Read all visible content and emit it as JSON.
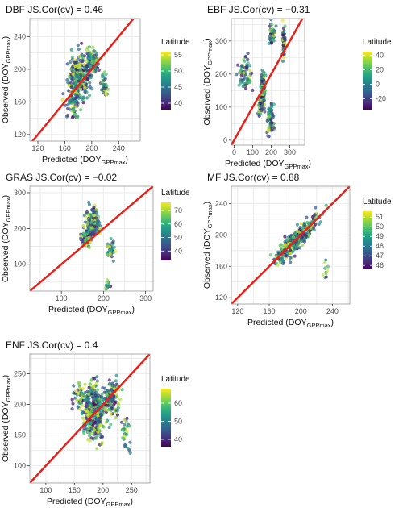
{
  "chart_data": [
    {
      "type": "scatter",
      "title": "DBF  JS.Cor(cv) = 0.46",
      "xlabel_main": "Predicted (DOY",
      "xlabel_sub": "GPPmax",
      "ylabel_main": "Observed (DOY",
      "ylabel_sub": "GPPmax",
      "xlim": [
        108,
        272
      ],
      "ylim": [
        112,
        262
      ],
      "xticks": [
        120,
        160,
        200,
        240
      ],
      "yticks": [
        120,
        160,
        200,
        240
      ],
      "legend_title": "Latitude",
      "legend_range": [
        38,
        56
      ],
      "legend_ticks": [
        40,
        45,
        50,
        55
      ],
      "identity_line": true,
      "grid": true,
      "clusters": [
        {
          "cx": 182,
          "cy": 190,
          "sx": 13,
          "sy": 24,
          "n": 260
        },
        {
          "cx": 200,
          "cy": 210,
          "sx": 8,
          "sy": 14,
          "n": 90
        },
        {
          "cx": 218,
          "cy": 182,
          "sx": 4,
          "sy": 12,
          "n": 35
        },
        {
          "cx": 172,
          "cy": 160,
          "sx": 9,
          "sy": 18,
          "n": 70
        }
      ]
    },
    {
      "type": "scatter",
      "title": "EBF  JS.Cor(cv) = −0.31",
      "xlabel_main": "Predicted (DOY",
      "xlabel_sub": "GPPmax",
      "ylabel_main": "Observed (DOY",
      "ylabel_sub": "GPPmax",
      "xlim": [
        -15,
        380
      ],
      "ylim": [
        -15,
        368
      ],
      "xticks": [
        0,
        100,
        200,
        300
      ],
      "yticks": [
        0,
        100,
        200,
        300
      ],
      "legend_title": "Latitude",
      "legend_range": [
        -35,
        45
      ],
      "legend_ticks": [
        -20,
        0,
        20,
        40
      ],
      "identity_line": true,
      "grid": true,
      "clusters": [
        {
          "cx": 60,
          "cy": 200,
          "sx": 30,
          "sy": 40,
          "n": 70
        },
        {
          "cx": 155,
          "cy": 150,
          "sx": 9,
          "sy": 45,
          "n": 120
        },
        {
          "cx": 195,
          "cy": 60,
          "sx": 15,
          "sy": 40,
          "n": 70
        },
        {
          "cx": 205,
          "cy": 320,
          "sx": 12,
          "sy": 25,
          "n": 50
        },
        {
          "cx": 268,
          "cy": 300,
          "sx": 6,
          "sy": 40,
          "n": 50
        },
        {
          "cx": 140,
          "cy": 100,
          "sx": 10,
          "sy": 20,
          "n": 25
        }
      ]
    },
    {
      "type": "scatter",
      "title": "GRAS  JS.Cor(cv) = −0.02",
      "xlabel_main": "Predicted (DOY",
      "xlabel_sub": "GPPmax",
      "ylabel_main": "Observed (DOY",
      "ylabel_sub": "GPPmax",
      "xlim": [
        25,
        318
      ],
      "ylim": [
        25,
        318
      ],
      "xticks": [
        100,
        200,
        300
      ],
      "yticks": [
        100,
        200,
        300
      ],
      "legend_title": "Latitude",
      "legend_range": [
        33,
        76
      ],
      "legend_ticks": [
        40,
        50,
        60,
        70
      ],
      "identity_line": true,
      "grid": true,
      "clusters": [
        {
          "cx": 175,
          "cy": 215,
          "sx": 15,
          "sy": 35,
          "n": 150
        },
        {
          "cx": 160,
          "cy": 170,
          "sx": 10,
          "sy": 25,
          "n": 60
        },
        {
          "cx": 215,
          "cy": 140,
          "sx": 8,
          "sy": 22,
          "n": 35
        },
        {
          "cx": 210,
          "cy": 40,
          "sx": 5,
          "sy": 10,
          "n": 12
        }
      ]
    },
    {
      "type": "scatter",
      "title": "MF  JS.Cor(cv) = 0.88",
      "xlabel_main": "Predicted (DOY",
      "xlabel_sub": "GPPmax",
      "ylabel_main": "Observed (DOY",
      "ylabel_sub": "GPPmax",
      "xlim": [
        112,
        262
      ],
      "ylim": [
        112,
        262
      ],
      "xticks": [
        120,
        160,
        200,
        240
      ],
      "yticks": [
        120,
        160,
        200,
        240
      ],
      "legend_title": "Latitude",
      "legend_range": [
        45.6,
        51.6
      ],
      "legend_ticks": [
        46,
        47,
        48,
        49,
        50,
        51
      ],
      "identity_line": true,
      "grid": true,
      "clusters": [
        {
          "cx": 195,
          "cy": 195,
          "sx": 20,
          "sy": 9,
          "n": 380,
          "diag": true
        },
        {
          "cx": 232,
          "cy": 155,
          "sx": 3,
          "sy": 10,
          "n": 10
        }
      ]
    },
    {
      "type": "scatter",
      "title": "ENF  JS.Cor(cv) = 0.4",
      "xlabel_main": "Predicted (DOY",
      "xlabel_sub": "GPPmax",
      "ylabel_main": "Observed (DOY",
      "ylabel_sub": "GPPmax",
      "xlim": [
        72,
        282
      ],
      "ylim": [
        72,
        282
      ],
      "xticks": [
        100,
        150,
        200,
        250
      ],
      "yticks": [
        100,
        150,
        200,
        250
      ],
      "legend_title": "Latitude",
      "legend_range": [
        36,
        68
      ],
      "legend_ticks": [
        40,
        50,
        60
      ],
      "identity_line": true,
      "grid": true,
      "clusters": [
        {
          "cx": 185,
          "cy": 190,
          "sx": 15,
          "sy": 38,
          "n": 380
        },
        {
          "cx": 215,
          "cy": 210,
          "sx": 12,
          "sy": 25,
          "n": 120
        },
        {
          "cx": 160,
          "cy": 210,
          "sx": 10,
          "sy": 20,
          "n": 50
        },
        {
          "cx": 240,
          "cy": 150,
          "sx": 8,
          "sy": 30,
          "n": 30
        }
      ]
    }
  ],
  "colors": {
    "identity_line": "#e8201a",
    "grid": "#ebebeb",
    "panel_border": "#9a9a9a",
    "viridis": [
      "#440154",
      "#482878",
      "#3e4a89",
      "#31688e",
      "#26828e",
      "#1f9e89",
      "#35b779",
      "#6ece58",
      "#b5de2b",
      "#fde725"
    ]
  }
}
